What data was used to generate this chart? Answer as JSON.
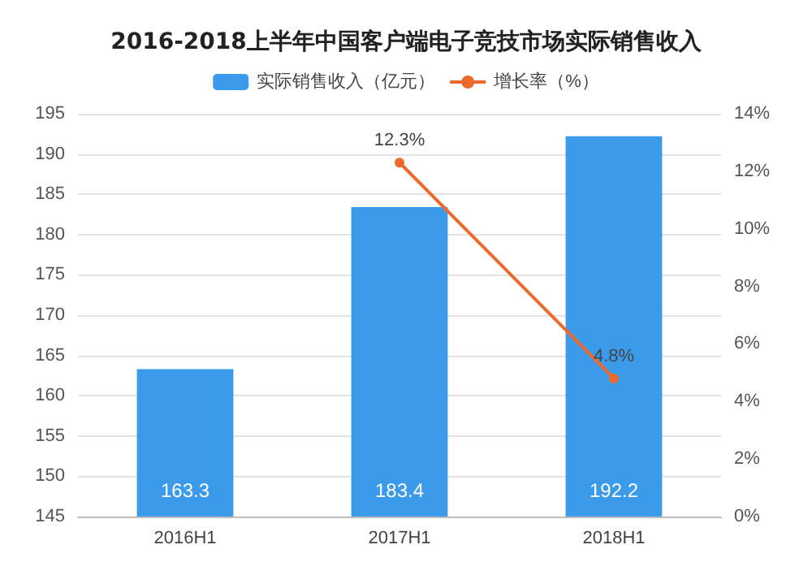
{
  "chart_data": {
    "type": "bar",
    "title": "2016-2018上半年中国客户端电子竞技市场实际销售收入",
    "categories": [
      "2016H1",
      "2017H1",
      "2018H1"
    ],
    "series": [
      {
        "name": "实际销售收入（亿元）",
        "color": "#3c9aea",
        "values": [
          163.3,
          183.4,
          192.2
        ],
        "value_labels": [
          "163.3",
          "183.4",
          "192.2"
        ]
      },
      {
        "name": "增长率（%）",
        "type": "line",
        "axis": "y2",
        "color": "#ee6a2c",
        "values": [
          null,
          12.3,
          4.8
        ],
        "value_labels": [
          null,
          "12.3%",
          "4.8%"
        ]
      }
    ],
    "ylim": [
      145,
      195
    ],
    "yticks": [
      145,
      150,
      155,
      160,
      165,
      170,
      175,
      180,
      185,
      190,
      195
    ],
    "y2lim": [
      0,
      14
    ],
    "y2ticks": [
      {
        "value": 0,
        "label": "0%"
      },
      {
        "value": 2,
        "label": "2%"
      },
      {
        "value": 4,
        "label": "4%"
      },
      {
        "value": 6,
        "label": "6%"
      },
      {
        "value": 8,
        "label": "8%"
      },
      {
        "value": 10,
        "label": "10%"
      },
      {
        "value": 12,
        "label": "12%"
      },
      {
        "value": 14,
        "label": "14%"
      }
    ],
    "grid": "y",
    "legend": "top",
    "marker": "circle"
  }
}
